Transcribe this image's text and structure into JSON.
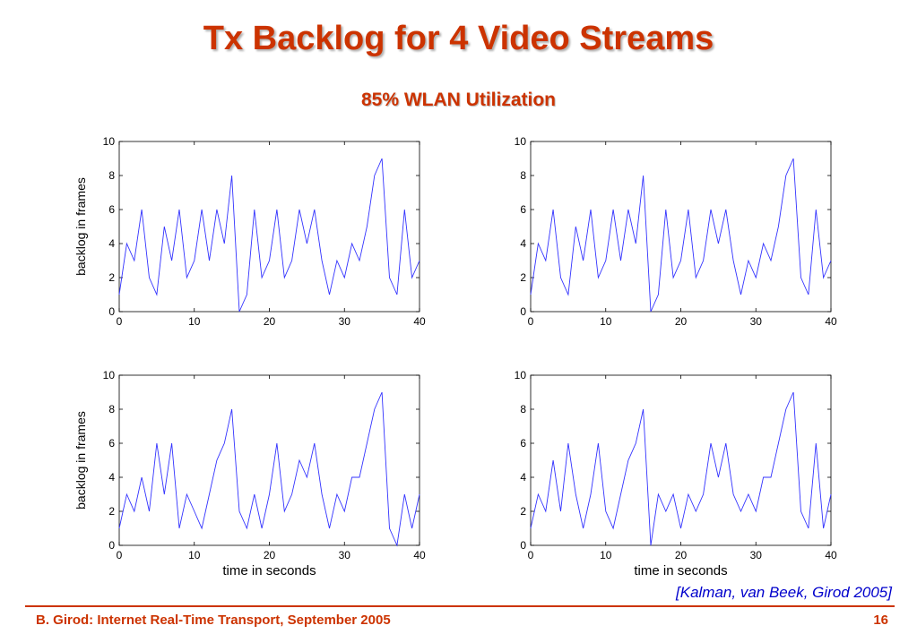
{
  "slide": {
    "title": "Tx Backlog for 4 Video Streams",
    "subtitle": "85% WLAN Utilization",
    "citation": "[Kalman, van Beek, Girod 2005]",
    "footer_left": "B. Girod: Internet Real-Time Transport, September 2005",
    "page_number": "16",
    "title_color": "#cc3300",
    "citation_color": "#0000cc"
  },
  "chart_data": [
    {
      "type": "line",
      "title": "",
      "xlabel": "",
      "ylabel": "backlog in frames",
      "xlim": [
        0,
        40
      ],
      "ylim": [
        0,
        10
      ],
      "xticks": [
        0,
        10,
        20,
        30,
        40
      ],
      "yticks": [
        0,
        2,
        4,
        6,
        8,
        10
      ],
      "line_color": "#3333ff",
      "series": [
        {
          "x": [
            0,
            1,
            2,
            3,
            4,
            5,
            6,
            7,
            8,
            9,
            10,
            11,
            12,
            13,
            14,
            15,
            16,
            17,
            18,
            19,
            20,
            21,
            22,
            23,
            24,
            25,
            26,
            27,
            28,
            29,
            30,
            31,
            32,
            33,
            34,
            35,
            36,
            37,
            38,
            39,
            40
          ],
          "values": [
            1,
            4,
            3,
            6,
            2,
            1,
            5,
            3,
            6,
            2,
            3,
            6,
            3,
            6,
            4,
            8,
            0,
            1,
            6,
            2,
            3,
            6,
            2,
            3,
            6,
            4,
            6,
            3,
            1,
            3,
            2,
            4,
            3,
            5,
            8,
            9,
            2,
            1,
            6,
            2,
            3
          ]
        }
      ]
    },
    {
      "type": "line",
      "title": "",
      "xlabel": "",
      "ylabel": "",
      "xlim": [
        0,
        40
      ],
      "ylim": [
        0,
        10
      ],
      "xticks": [
        0,
        10,
        20,
        30,
        40
      ],
      "yticks": [
        0,
        2,
        4,
        6,
        8,
        10
      ],
      "line_color": "#3333ff",
      "series": [
        {
          "x": [
            0,
            1,
            2,
            3,
            4,
            5,
            6,
            7,
            8,
            9,
            10,
            11,
            12,
            13,
            14,
            15,
            16,
            17,
            18,
            19,
            20,
            21,
            22,
            23,
            24,
            25,
            26,
            27,
            28,
            29,
            30,
            31,
            32,
            33,
            34,
            35,
            36,
            37,
            38,
            39,
            40
          ],
          "values": [
            1,
            4,
            3,
            6,
            2,
            1,
            5,
            3,
            6,
            2,
            3,
            6,
            3,
            6,
            4,
            8,
            0,
            1,
            6,
            2,
            3,
            6,
            2,
            3,
            6,
            4,
            6,
            3,
            1,
            3,
            2,
            4,
            3,
            5,
            8,
            9,
            2,
            1,
            6,
            2,
            3
          ]
        }
      ]
    },
    {
      "type": "line",
      "title": "",
      "xlabel": "time in seconds",
      "ylabel": "backlog in frames",
      "xlim": [
        0,
        40
      ],
      "ylim": [
        0,
        10
      ],
      "xticks": [
        0,
        10,
        20,
        30,
        40
      ],
      "yticks": [
        0,
        2,
        4,
        6,
        8,
        10
      ],
      "line_color": "#3333ff",
      "series": [
        {
          "x": [
            0,
            1,
            2,
            3,
            4,
            5,
            6,
            7,
            8,
            9,
            10,
            11,
            12,
            13,
            14,
            15,
            16,
            17,
            18,
            19,
            20,
            21,
            22,
            23,
            24,
            25,
            26,
            27,
            28,
            29,
            30,
            31,
            32,
            33,
            34,
            35,
            36,
            37,
            38,
            39,
            40
          ],
          "values": [
            1,
            3,
            2,
            4,
            2,
            6,
            3,
            6,
            1,
            3,
            2,
            1,
            3,
            5,
            6,
            8,
            2,
            1,
            3,
            1,
            3,
            6,
            2,
            3,
            5,
            4,
            6,
            3,
            1,
            3,
            2,
            4,
            4,
            6,
            8,
            9,
            1,
            0,
            3,
            1,
            3
          ]
        }
      ]
    },
    {
      "type": "line",
      "title": "",
      "xlabel": "time in seconds",
      "ylabel": "",
      "xlim": [
        0,
        40
      ],
      "ylim": [
        0,
        10
      ],
      "xticks": [
        0,
        10,
        20,
        30,
        40
      ],
      "yticks": [
        0,
        2,
        4,
        6,
        8,
        10
      ],
      "line_color": "#3333ff",
      "series": [
        {
          "x": [
            0,
            1,
            2,
            3,
            4,
            5,
            6,
            7,
            8,
            9,
            10,
            11,
            12,
            13,
            14,
            15,
            16,
            17,
            18,
            19,
            20,
            21,
            22,
            23,
            24,
            25,
            26,
            27,
            28,
            29,
            30,
            31,
            32,
            33,
            34,
            35,
            36,
            37,
            38,
            39,
            40
          ],
          "values": [
            1,
            3,
            2,
            5,
            2,
            6,
            3,
            1,
            3,
            6,
            2,
            1,
            3,
            5,
            6,
            8,
            0,
            3,
            2,
            3,
            1,
            3,
            2,
            3,
            6,
            4,
            6,
            3,
            2,
            3,
            2,
            4,
            4,
            6,
            8,
            9,
            2,
            1,
            6,
            1,
            3
          ]
        }
      ]
    }
  ]
}
